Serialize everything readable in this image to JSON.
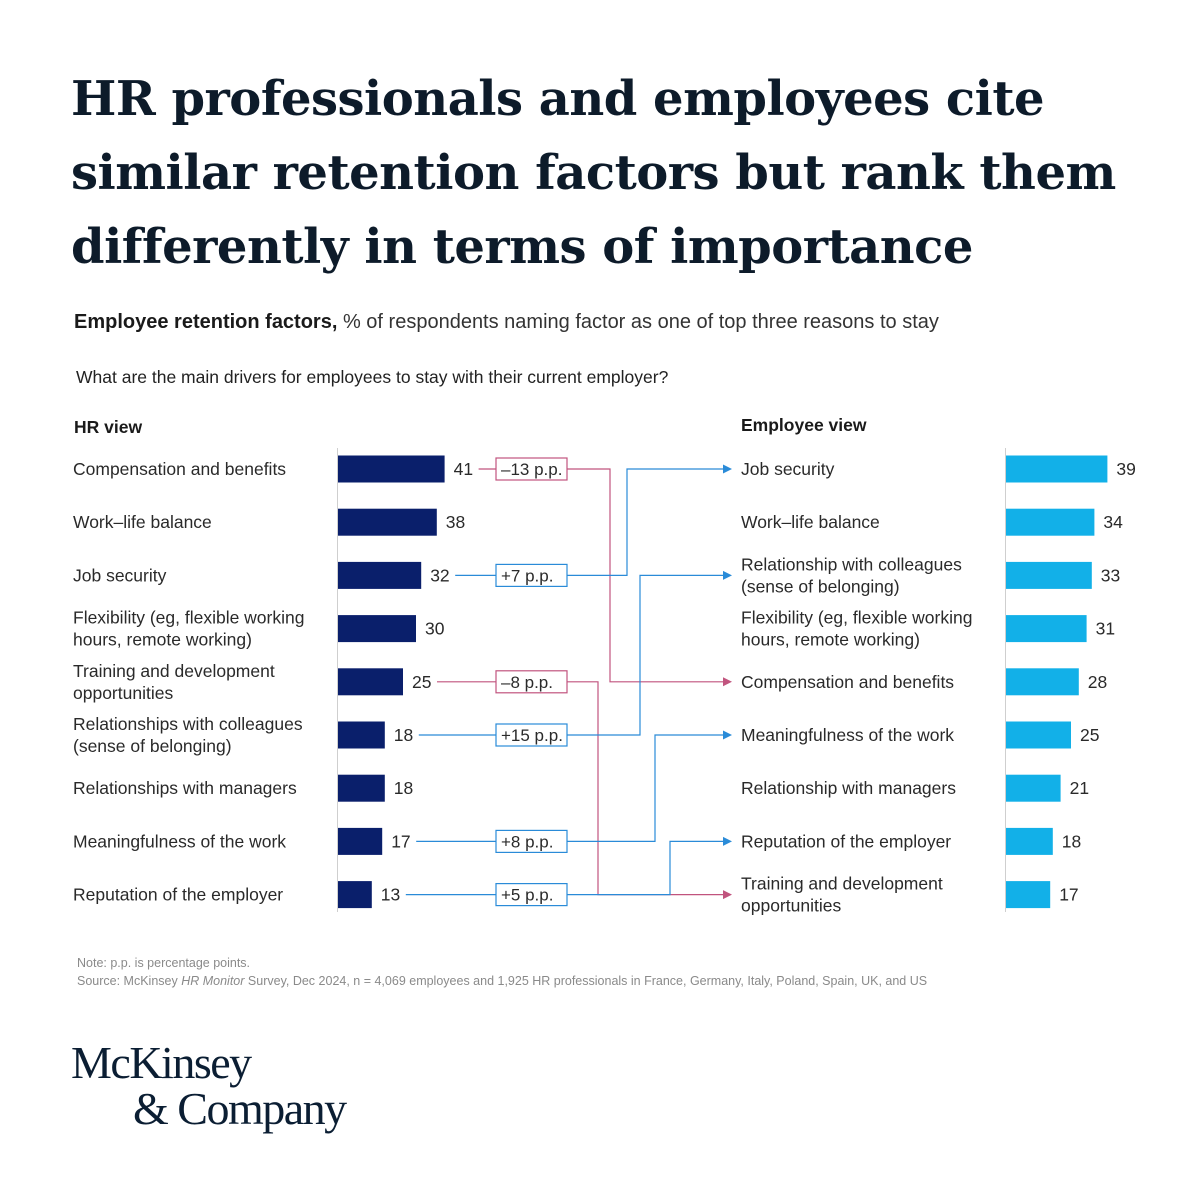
{
  "headline": "HR professionals and employees cite similar retention factors but rank them differently in terms of importance",
  "subtitle_bold": "Employee retention factors,",
  "subtitle_rest": " % of respondents naming factor as one of top three reasons to stay",
  "question": "What are the main drivers for employees to stay with their current employer?",
  "colors": {
    "hr_bar": "#0a1f6b",
    "employee_bar": "#12b0e8",
    "negative": "#c1547e",
    "positive": "#2a8bd8",
    "axis": "#cfcfcf"
  },
  "chart_data": {
    "type": "bar",
    "title": "Employee retention factors",
    "unit": "% of respondents naming factor as one of top three reasons to stay",
    "hr_view": {
      "label": "HR view",
      "categories": [
        [
          "Compensation and benefits"
        ],
        [
          "Work–life balance"
        ],
        [
          "Job security"
        ],
        [
          "Flexibility (eg, flexible working",
          "hours, remote working)"
        ],
        [
          "Training and development",
          "opportunities"
        ],
        [
          "Relationships with colleagues",
          "(sense of belonging)"
        ],
        [
          "Relationships with managers"
        ],
        [
          "Meaningfulness of the work"
        ],
        [
          "Reputation of the employer"
        ]
      ],
      "values": [
        41,
        38,
        32,
        30,
        25,
        18,
        18,
        17,
        13
      ]
    },
    "employee_view": {
      "label": "Employee view",
      "categories": [
        [
          "Job security"
        ],
        [
          "Work–life balance"
        ],
        [
          "Relationship with colleagues",
          "(sense of belonging)"
        ],
        [
          "Flexibility (eg, flexible working",
          "hours, remote working)"
        ],
        [
          "Compensation and benefits"
        ],
        [
          "Meaningfulness of the work"
        ],
        [
          "Relationship with managers"
        ],
        [
          "Reputation of the employer"
        ],
        [
          "Training and development",
          "opportunities"
        ]
      ],
      "values": [
        39,
        34,
        33,
        31,
        28,
        25,
        21,
        18,
        17
      ]
    },
    "shifts": [
      {
        "from": 0,
        "to": 4,
        "label": "–13 p.p.",
        "dir": "negative"
      },
      {
        "from": 2,
        "to": 0,
        "label": "+7 p.p.",
        "dir": "positive"
      },
      {
        "from": 4,
        "to": 8,
        "label": "–8 p.p.",
        "dir": "negative"
      },
      {
        "from": 5,
        "to": 2,
        "label": "+15 p.p.",
        "dir": "positive"
      },
      {
        "from": 7,
        "to": 5,
        "label": "+8 p.p.",
        "dir": "positive"
      },
      {
        "from": 8,
        "to": 7,
        "label": "+5 p.p.",
        "dir": "positive"
      }
    ]
  },
  "footer": {
    "note": "Note: p.p. is percentage points.",
    "source_pre": "Source: McKinsey ",
    "source_italic": "HR Monitor",
    "source_post": " Survey, Dec 2024, n = 4,069 employees and 1,925 HR professionals in France, Germany, Italy, Poland, Spain, UK, and US"
  },
  "logo": {
    "line1": "McKinsey",
    "line2": "& Company"
  }
}
